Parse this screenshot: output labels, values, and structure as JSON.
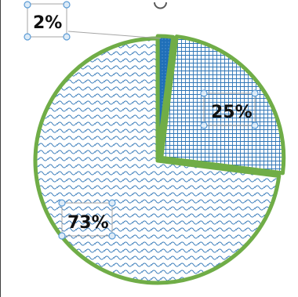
{
  "chart_data": {
    "type": "pie",
    "title": "",
    "slices": [
      {
        "label": "2%",
        "value": 2,
        "pattern": "solid-dotted"
      },
      {
        "label": "25%",
        "value": 25,
        "pattern": "grid"
      },
      {
        "label": "73%",
        "value": 73,
        "pattern": "wave"
      }
    ],
    "legend": "none"
  },
  "colors": {
    "outline": "#70AD47",
    "pattern": "#2E75B6",
    "solid_slice": "#1F6FB8",
    "selection_handle": "#5B9BD5",
    "selection_box": "#A6A6A6",
    "leader_line": "#A6A6A6",
    "label_text": "#111111",
    "background": "#FFFFFF"
  },
  "selected": "data-labels"
}
